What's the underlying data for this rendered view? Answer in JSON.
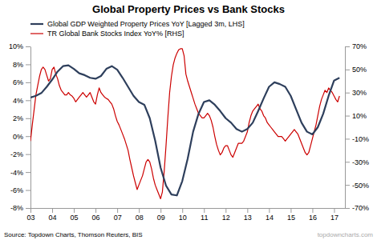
{
  "chart_data": {
    "type": "line",
    "title": "Global Property Prices vs Bank Stocks",
    "annotations": [
      "Source: Topdown Charts, Thomson Reuters, BIS",
      "topdowncharts.com"
    ],
    "legend": "upper left",
    "xlim": [
      2003.0,
      2017.5
    ],
    "xticks": [
      {
        "value": 2003,
        "label": "03"
      },
      {
        "value": 2004,
        "label": "04"
      },
      {
        "value": 2005,
        "label": "05"
      },
      {
        "value": 2006,
        "label": "06"
      },
      {
        "value": 2007,
        "label": "07"
      },
      {
        "value": 2008,
        "label": "08"
      },
      {
        "value": 2009,
        "label": "09"
      },
      {
        "value": 2010,
        "label": "10"
      },
      {
        "value": 2011,
        "label": "11"
      },
      {
        "value": 2012,
        "label": "12"
      },
      {
        "value": 2013,
        "label": "13"
      },
      {
        "value": 2014,
        "label": "14"
      },
      {
        "value": 2015,
        "label": "15"
      },
      {
        "value": 2016,
        "label": "16"
      },
      {
        "value": 2017,
        "label": "17"
      }
    ],
    "ylim": [
      -8,
      10
    ],
    "yticks": [
      {
        "value": -8,
        "label": "-8%"
      },
      {
        "value": -6,
        "label": "-6%"
      },
      {
        "value": -4,
        "label": "-4%"
      },
      {
        "value": -2,
        "label": "-2%"
      },
      {
        "value": 0,
        "label": "0%"
      },
      {
        "value": 2,
        "label": "2%"
      },
      {
        "value": 4,
        "label": "4%"
      },
      {
        "value": 6,
        "label": "6%"
      },
      {
        "value": 8,
        "label": "8%"
      },
      {
        "value": 10,
        "label": "10%"
      }
    ],
    "y2lim": [
      -70,
      70
    ],
    "y2ticks": [
      {
        "value": -70,
        "label": "-70%"
      },
      {
        "value": -50,
        "label": "-50%"
      },
      {
        "value": -30,
        "label": "-30%"
      },
      {
        "value": -10,
        "label": "-10%"
      },
      {
        "value": 10,
        "label": "10%"
      },
      {
        "value": 30,
        "label": "30%"
      },
      {
        "value": 50,
        "label": "50%"
      },
      {
        "value": 70,
        "label": "70%"
      }
    ],
    "series": [
      {
        "name": "Global GDP Weighted Property Prices YoY [Lagged 3m, LHS]",
        "color": "#2e3f5c",
        "x": [
          2003.0,
          2003.25,
          2003.5,
          2003.75,
          2004.0,
          2004.25,
          2004.5,
          2004.75,
          2005.0,
          2005.25,
          2005.5,
          2005.75,
          2006.0,
          2006.25,
          2006.5,
          2006.75,
          2007.0,
          2007.25,
          2007.5,
          2007.75,
          2008.0,
          2008.25,
          2008.5,
          2008.75,
          2009.0,
          2009.25,
          2009.5,
          2009.75,
          2010.0,
          2010.25,
          2010.5,
          2010.75,
          2011.0,
          2011.25,
          2011.5,
          2011.75,
          2012.0,
          2012.25,
          2012.5,
          2012.75,
          2013.0,
          2013.25,
          2013.5,
          2013.75,
          2014.0,
          2014.25,
          2014.5,
          2014.75,
          2015.0,
          2015.25,
          2015.5,
          2015.75,
          2016.0,
          2016.25,
          2016.5,
          2016.75,
          2017.0,
          2017.25
        ],
        "values": [
          4.3,
          4.5,
          4.8,
          5.5,
          6.3,
          7.2,
          7.8,
          7.9,
          7.5,
          7.0,
          6.8,
          6.5,
          6.4,
          6.7,
          7.5,
          7.8,
          7.4,
          6.5,
          5.5,
          4.5,
          3.8,
          3.5,
          2.0,
          -0.5,
          -3.5,
          -5.5,
          -6.5,
          -6.6,
          -5.0,
          -2.5,
          0.5,
          2.5,
          3.8,
          4.0,
          3.5,
          2.8,
          2.0,
          1.5,
          0.8,
          0.5,
          0.8,
          1.5,
          2.8,
          4.2,
          5.5,
          6.0,
          5.8,
          5.5,
          4.5,
          3.0,
          1.5,
          0.5,
          0.2,
          1.0,
          2.5,
          4.5,
          6.2,
          6.5
        ]
      },
      {
        "name": "TR Global Bank Stocks Index YoY% [RHS]",
        "color": "#cc0000",
        "axis": "y2",
        "x": [
          2003.0,
          2003.083,
          2003.167,
          2003.25,
          2003.333,
          2003.417,
          2003.5,
          2003.583,
          2003.667,
          2003.75,
          2003.833,
          2003.917,
          2004.0,
          2004.083,
          2004.167,
          2004.25,
          2004.333,
          2004.417,
          2004.5,
          2004.583,
          2004.667,
          2004.75,
          2004.833,
          2004.917,
          2005.0,
          2005.083,
          2005.167,
          2005.25,
          2005.333,
          2005.417,
          2005.5,
          2005.583,
          2005.667,
          2005.75,
          2005.833,
          2005.917,
          2006.0,
          2006.083,
          2006.167,
          2006.25,
          2006.333,
          2006.417,
          2006.5,
          2006.583,
          2006.667,
          2006.75,
          2006.833,
          2006.917,
          2007.0,
          2007.083,
          2007.167,
          2007.25,
          2007.333,
          2007.417,
          2007.5,
          2007.583,
          2007.667,
          2007.75,
          2007.833,
          2007.917,
          2008.0,
          2008.083,
          2008.167,
          2008.25,
          2008.333,
          2008.417,
          2008.5,
          2008.583,
          2008.667,
          2008.75,
          2008.833,
          2008.917,
          2009.0,
          2009.083,
          2009.167,
          2009.25,
          2009.333,
          2009.417,
          2009.5,
          2009.583,
          2009.667,
          2009.75,
          2009.833,
          2009.917,
          2010.0,
          2010.083,
          2010.167,
          2010.25,
          2010.333,
          2010.417,
          2010.5,
          2010.583,
          2010.667,
          2010.75,
          2010.833,
          2010.917,
          2011.0,
          2011.083,
          2011.167,
          2011.25,
          2011.333,
          2011.417,
          2011.5,
          2011.583,
          2011.667,
          2011.75,
          2011.833,
          2011.917,
          2012.0,
          2012.083,
          2012.167,
          2012.25,
          2012.333,
          2012.417,
          2012.5,
          2012.583,
          2012.667,
          2012.75,
          2012.833,
          2012.917,
          2013.0,
          2013.083,
          2013.167,
          2013.25,
          2013.333,
          2013.417,
          2013.5,
          2013.583,
          2013.667,
          2013.75,
          2013.833,
          2013.917,
          2014.0,
          2014.083,
          2014.167,
          2014.25,
          2014.333,
          2014.417,
          2014.5,
          2014.583,
          2014.667,
          2014.75,
          2014.833,
          2014.917,
          2015.0,
          2015.083,
          2015.167,
          2015.25,
          2015.333,
          2015.417,
          2015.5,
          2015.583,
          2015.667,
          2015.75,
          2015.833,
          2015.917,
          2016.0,
          2016.083,
          2016.167,
          2016.25,
          2016.333,
          2016.417,
          2016.5,
          2016.583,
          2016.667,
          2016.75,
          2016.833,
          2016.917,
          2017.0,
          2017.083,
          2017.167,
          2017.25
        ],
        "values": [
          -12,
          2,
          15,
          28,
          36,
          44,
          50,
          52,
          50,
          45,
          40,
          42,
          50,
          52,
          46,
          42,
          36,
          32,
          30,
          28,
          28,
          30,
          28,
          27,
          25,
          22,
          24,
          26,
          28,
          30,
          28,
          26,
          28,
          30,
          26,
          22,
          20,
          28,
          34,
          30,
          28,
          26,
          25,
          24,
          22,
          20,
          16,
          10,
          5,
          2,
          -2,
          -6,
          -10,
          -15,
          -20,
          -28,
          -35,
          -42,
          -48,
          -54,
          -50,
          -46,
          -42,
          -36,
          -30,
          -28,
          -30,
          -36,
          -44,
          -50,
          -54,
          -58,
          -62,
          -56,
          -38,
          -16,
          8,
          30,
          44,
          54,
          60,
          64,
          67,
          68,
          68,
          62,
          46,
          40,
          35,
          30,
          25,
          20,
          16,
          12,
          10,
          8,
          8,
          10,
          12,
          10,
          6,
          0,
          -8,
          -15,
          -20,
          -24,
          -22,
          -18,
          -16,
          -16,
          -20,
          -24,
          -26,
          -22,
          -18,
          -14,
          -14,
          -14,
          -12,
          -8,
          -4,
          4,
          10,
          14,
          16,
          18,
          20,
          16,
          14,
          10,
          8,
          4,
          2,
          0,
          -2,
          -4,
          -6,
          -8,
          -8,
          -8,
          -10,
          -12,
          -10,
          -8,
          -6,
          -4,
          -2,
          -4,
          -6,
          -10,
          -14,
          -18,
          -22,
          -24,
          -22,
          -16,
          -10,
          -4,
          2,
          10,
          18,
          24,
          28,
          32,
          30,
          34,
          32,
          30,
          27,
          24,
          22,
          27
        ]
      }
    ]
  }
}
